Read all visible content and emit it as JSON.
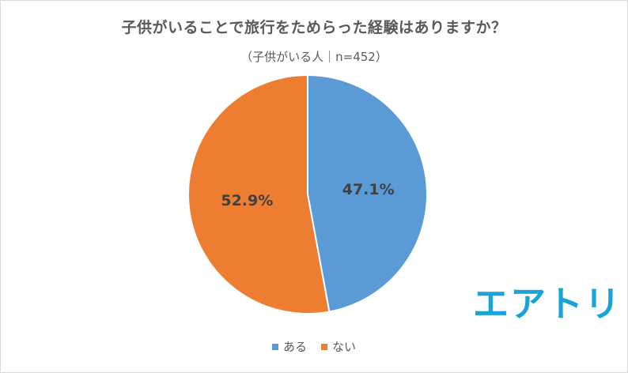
{
  "chart_data": {
    "type": "pie",
    "title": "子供がいることで旅行をためらった経験はありますか？",
    "subtitle": "（子供がいる人｜n=452）",
    "slices": [
      {
        "label": "ある",
        "value": 47.1,
        "display": "47.1%",
        "color": "#5b9bd5"
      },
      {
        "label": "ない",
        "value": 52.9,
        "display": "52.9%",
        "color": "#ed7d31"
      }
    ],
    "start_angle_deg": 0,
    "direction": "clockwise",
    "legend_position": "bottom"
  },
  "logo": {
    "text": "エアトリ",
    "color": "#1aa3d9"
  }
}
